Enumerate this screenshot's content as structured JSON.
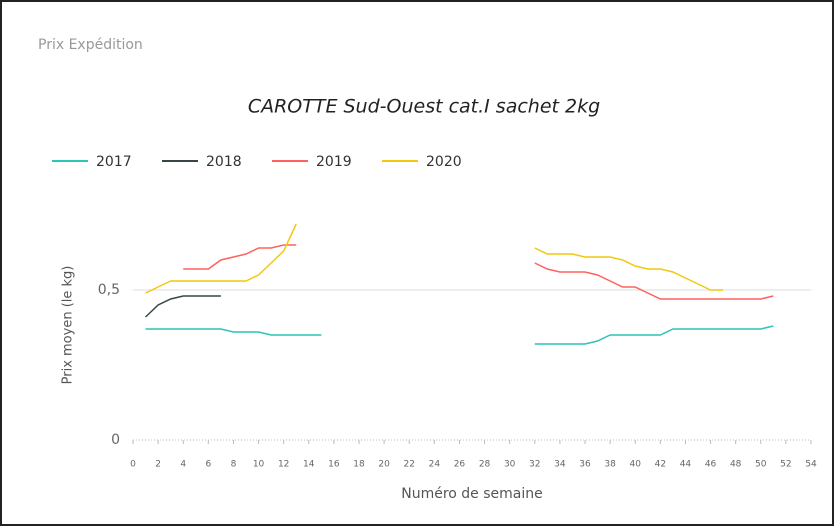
{
  "header": {
    "title": "Prix Expédition"
  },
  "chart_data": {
    "type": "line",
    "title": "CAROTTE Sud-Ouest cat.I sachet 2kg",
    "x_label": "Numéro de semaine",
    "y_label": "Prix moyen  (le kg)",
    "x": [
      1,
      2,
      3,
      4,
      5,
      6,
      7,
      8,
      9,
      10,
      11,
      12,
      13,
      14,
      15,
      16,
      17,
      18,
      19,
      20,
      21,
      22,
      23,
      24,
      25,
      26,
      27,
      28,
      29,
      30,
      31,
      32,
      33,
      34,
      35,
      36,
      37,
      38,
      39,
      40,
      41,
      42,
      43,
      44,
      45,
      46,
      47,
      48,
      49,
      50,
      51
    ],
    "series": [
      {
        "name": "2017",
        "color": "#2ec4b6",
        "values": [
          0.37,
          0.37,
          0.37,
          0.37,
          0.37,
          0.37,
          0.37,
          0.36,
          0.36,
          0.36,
          0.35,
          0.35,
          0.35,
          0.35,
          0.35,
          null,
          null,
          null,
          null,
          null,
          null,
          null,
          null,
          null,
          null,
          null,
          null,
          null,
          null,
          null,
          null,
          0.32,
          0.32,
          0.32,
          0.32,
          0.32,
          0.33,
          0.35,
          0.35,
          0.35,
          0.35,
          0.35,
          0.37,
          0.37,
          0.37,
          0.37,
          0.37,
          0.37,
          0.37,
          0.37,
          0.38
        ]
      },
      {
        "name": "2018",
        "color": "#374649",
        "values": [
          0.41,
          0.45,
          0.47,
          0.48,
          0.48,
          0.48,
          0.48,
          null,
          null,
          null,
          null,
          null,
          null,
          null,
          null,
          null,
          null,
          null,
          null,
          null,
          null,
          null,
          null,
          null,
          null,
          null,
          null,
          null,
          null,
          null,
          null,
          null,
          null,
          null,
          null,
          null,
          null,
          null,
          null,
          null,
          null,
          null,
          null,
          null,
          null,
          null,
          null,
          null,
          null,
          null,
          null
        ]
      },
      {
        "name": "2019",
        "color": "#fd625e",
        "values": [
          null,
          null,
          null,
          0.57,
          0.57,
          0.57,
          0.6,
          0.61,
          0.62,
          0.64,
          0.64,
          0.65,
          0.65,
          null,
          null,
          null,
          null,
          null,
          null,
          null,
          null,
          null,
          null,
          null,
          null,
          null,
          null,
          null,
          null,
          null,
          null,
          0.59,
          0.57,
          0.56,
          0.56,
          0.56,
          0.55,
          0.53,
          0.51,
          0.51,
          0.49,
          0.47,
          0.47,
          0.47,
          0.47,
          0.47,
          0.47,
          0.47,
          0.47,
          0.47,
          0.48
        ]
      },
      {
        "name": "2020",
        "color": "#f2c80f",
        "values": [
          0.49,
          0.51,
          0.53,
          0.53,
          0.53,
          0.53,
          0.53,
          0.53,
          0.53,
          0.55,
          0.59,
          0.63,
          0.72,
          null,
          null,
          null,
          null,
          null,
          null,
          null,
          null,
          null,
          null,
          null,
          null,
          null,
          null,
          null,
          null,
          null,
          null,
          0.64,
          0.62,
          0.62,
          0.62,
          0.61,
          0.61,
          0.61,
          0.6,
          0.58,
          0.57,
          0.57,
          0.56,
          0.54,
          0.52,
          0.5,
          0.5,
          null,
          null,
          null,
          null
        ]
      }
    ],
    "xlim": [
      0,
      54
    ],
    "xticks": [
      0,
      2,
      4,
      6,
      8,
      10,
      12,
      14,
      16,
      18,
      20,
      22,
      24,
      26,
      28,
      30,
      32,
      34,
      36,
      38,
      40,
      42,
      44,
      46,
      48,
      50,
      52,
      54
    ],
    "ylim": [
      0,
      0.8
    ],
    "yticks": [
      0,
      {
        "value": 0.5,
        "label": "0,5"
      }
    ],
    "grid": true,
    "legend": "top-left"
  }
}
